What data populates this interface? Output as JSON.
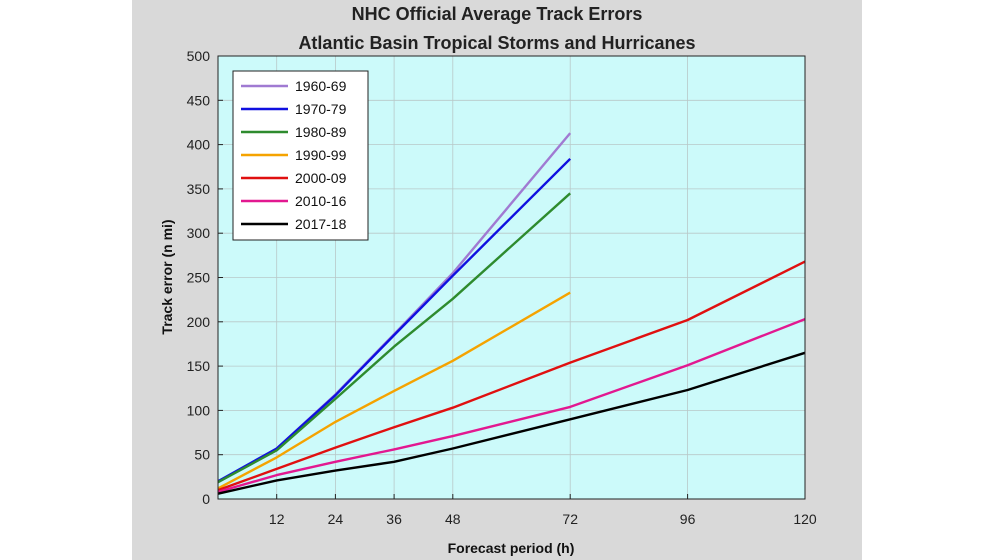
{
  "chart_data": {
    "type": "line",
    "title": "NHC Official Average Track Errors",
    "subtitle": "Atlantic Basin Tropical Storms and Hurricanes",
    "xlabel": "Forecast period (h)",
    "ylabel": "Track error (n mi)",
    "xlim": [
      0,
      120
    ],
    "ylim": [
      0,
      500
    ],
    "xticks": [
      12,
      24,
      36,
      48,
      72,
      96,
      120
    ],
    "yticks": [
      0,
      50,
      100,
      150,
      200,
      250,
      300,
      350,
      400,
      450,
      500
    ],
    "grid": true,
    "legend_position": "top-left",
    "colors": {
      "page_background": "#ffffff",
      "figure_background": "#d9d9d9",
      "plot_background": "#ccfafa"
    },
    "series": [
      {
        "name": "1960-69",
        "color": "#a07ad2",
        "x": [
          0,
          12,
          24,
          36,
          48,
          72
        ],
        "y": [
          19,
          57,
          118,
          186,
          255,
          413
        ]
      },
      {
        "name": "1970-79",
        "color": "#1010e0",
        "x": [
          0,
          12,
          24,
          36,
          48,
          72
        ],
        "y": [
          20,
          57,
          117,
          185,
          252,
          384
        ]
      },
      {
        "name": "1980-89",
        "color": "#2e8b2e",
        "x": [
          0,
          12,
          24,
          36,
          48,
          72
        ],
        "y": [
          19,
          55,
          113,
          172,
          226,
          345
        ]
      },
      {
        "name": "1990-99",
        "color": "#f5a300",
        "x": [
          0,
          12,
          24,
          36,
          48,
          72
        ],
        "y": [
          12,
          47,
          87,
          122,
          156,
          233
        ]
      },
      {
        "name": "2000-09",
        "color": "#e01010",
        "x": [
          0,
          12,
          24,
          36,
          48,
          72,
          96,
          120
        ],
        "y": [
          10,
          34,
          58,
          81,
          103,
          154,
          202,
          268
        ]
      },
      {
        "name": "2010-16",
        "color": "#e21890",
        "x": [
          0,
          12,
          24,
          36,
          48,
          72,
          96,
          120
        ],
        "y": [
          8,
          27,
          42,
          56,
          71,
          104,
          151,
          203
        ]
      },
      {
        "name": "2017-18",
        "color": "#000000",
        "x": [
          0,
          12,
          24,
          36,
          48,
          72,
          96,
          120
        ],
        "y": [
          6,
          21,
          32,
          42,
          57,
          90,
          123,
          165
        ]
      }
    ]
  }
}
